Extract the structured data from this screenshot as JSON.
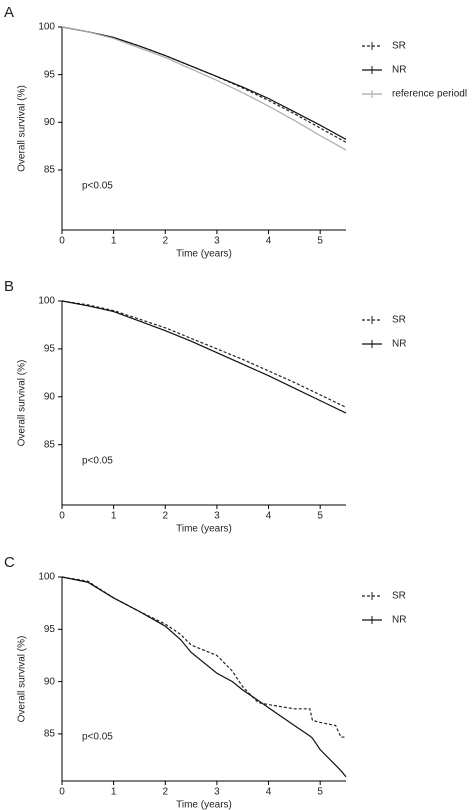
{
  "chart_data": [
    {
      "type": "line",
      "panel_label": "A",
      "xlabel": "Time (years)",
      "ylabel": "Overall survival (%)",
      "annotation": "p<0.05",
      "xlim": [
        0,
        5.5
      ],
      "ylim": [
        78.7,
        100
      ],
      "xticks": [
        0,
        1,
        2,
        3,
        4,
        5
      ],
      "yticks": [
        85,
        90,
        95,
        100
      ],
      "x": [
        0,
        0.5,
        1,
        1.5,
        2,
        2.5,
        3,
        3.5,
        4,
        4.5,
        5,
        5.5
      ],
      "series": [
        {
          "name": "SR",
          "color": "#222222",
          "style": "dashed",
          "values": [
            100,
            99.5,
            98.9,
            98.0,
            97.0,
            95.9,
            94.8,
            93.6,
            92.3,
            90.9,
            89.4,
            87.9
          ]
        },
        {
          "name": "NR",
          "color": "#111111",
          "style": "solid",
          "values": [
            100,
            99.5,
            98.9,
            98.0,
            97.0,
            95.9,
            94.8,
            93.7,
            92.5,
            91.1,
            89.7,
            88.2
          ]
        },
        {
          "name": "reference periodl",
          "color": "#aaaaaa",
          "style": "solid",
          "values": [
            100,
            99.5,
            98.8,
            97.8,
            96.8,
            95.6,
            94.4,
            93.1,
            91.7,
            90.2,
            88.6,
            87.1
          ]
        }
      ]
    },
    {
      "type": "line",
      "panel_label": "B",
      "xlabel": "Time (years)",
      "ylabel": "Overall survival (%)",
      "annotation": "p<0.05",
      "xlim": [
        0,
        5.5
      ],
      "ylim": [
        78.7,
        100
      ],
      "xticks": [
        0,
        1,
        2,
        3,
        4,
        5
      ],
      "yticks": [
        85,
        90,
        95,
        100
      ],
      "x": [
        0,
        0.5,
        1,
        1.5,
        2,
        2.5,
        3,
        3.5,
        4,
        4.5,
        5,
        5.5
      ],
      "series": [
        {
          "name": "SR",
          "color": "#222222",
          "style": "dashed",
          "values": [
            100,
            99.6,
            99.0,
            98.1,
            97.2,
            96.1,
            95.0,
            93.9,
            92.7,
            91.5,
            90.2,
            88.9
          ]
        },
        {
          "name": "NR",
          "color": "#111111",
          "style": "solid",
          "values": [
            100,
            99.5,
            98.9,
            97.9,
            96.9,
            95.8,
            94.6,
            93.4,
            92.2,
            90.9,
            89.6,
            88.3
          ]
        }
      ]
    },
    {
      "type": "line",
      "panel_label": "C",
      "xlabel": "Time (years)",
      "ylabel": "Overall survival (%)",
      "annotation": "p<0.05",
      "xlim": [
        0,
        5.5
      ],
      "ylim": [
        80.5,
        100
      ],
      "xticks": [
        0,
        1,
        2,
        3,
        4,
        5
      ],
      "yticks": [
        85,
        90,
        95,
        100
      ],
      "x": [
        0,
        0.5,
        1,
        1.5,
        2,
        2.3,
        2.5,
        3,
        3.3,
        3.5,
        3.8,
        4,
        4.5,
        4.8,
        4.85,
        5,
        5.3,
        5.4,
        5.5
      ],
      "series": [
        {
          "name": "SR",
          "color": "#222222",
          "style": "dashed",
          "values": [
            100,
            99.6,
            98.0,
            96.7,
            95.5,
            94.5,
            93.5,
            92.5,
            91.0,
            89.5,
            88.0,
            87.8,
            87.4,
            87.4,
            86.3,
            86.1,
            85.8,
            84.7,
            84.7
          ]
        },
        {
          "name": "NR",
          "color": "#111111",
          "style": "solid",
          "values": [
            100,
            99.5,
            98.0,
            96.7,
            95.3,
            94.0,
            92.8,
            90.8,
            90.0,
            89.2,
            88.2,
            87.5,
            85.8,
            84.8,
            84.6,
            83.5,
            82.0,
            81.5,
            80.9
          ]
        }
      ]
    }
  ]
}
